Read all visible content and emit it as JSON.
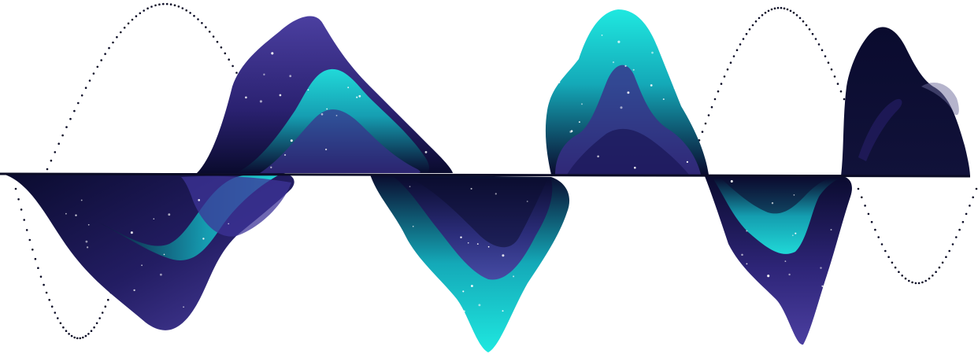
{
  "artwork": {
    "kind": "abstract-waveform-illustration",
    "colors": {
      "background": "#ffffff",
      "navy": "#0a0b2e",
      "indigo": "#3a2f8a",
      "purple": "#4b3fa0",
      "teal": "#14b8c4",
      "cyan": "#1fe8e0",
      "baseline": "#0b0c26",
      "dots": "#0b0c26",
      "sparkles": "#ffffff"
    }
  }
}
